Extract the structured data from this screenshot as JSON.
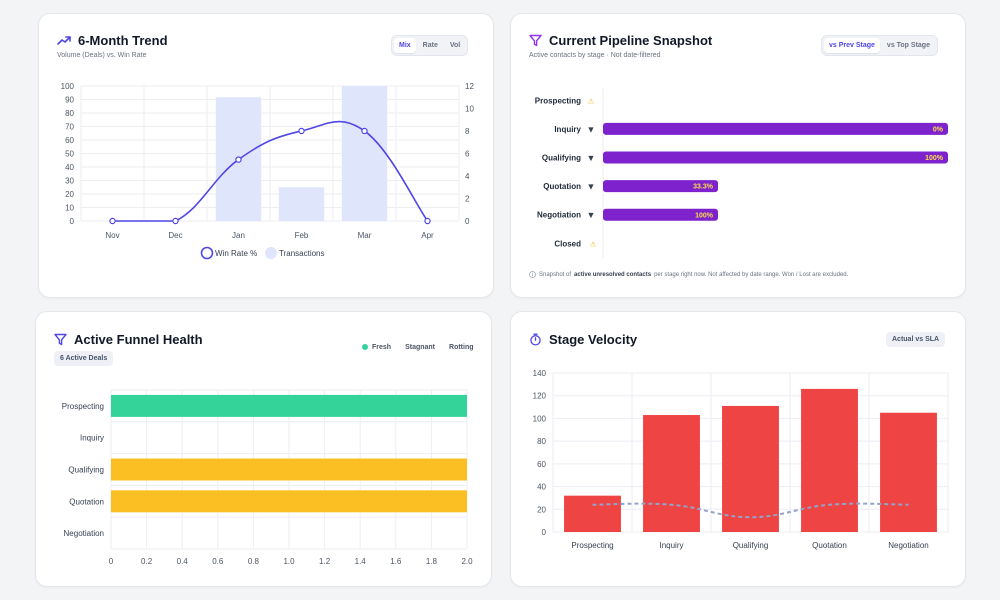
{
  "trend": {
    "title": "6-Month Trend",
    "subtitle": "Volume (Deals) vs. Win Rate",
    "toggle": [
      "Mix",
      "Rate",
      "Vol"
    ],
    "active_toggle": "Mix"
  },
  "pipeline": {
    "title": "Current Pipeline Snapshot",
    "subtitle": "Active contacts by stage · Not date-filtered",
    "toggle": [
      "vs Prev Stage",
      "vs Top Stage"
    ],
    "active_toggle": "vs Prev Stage",
    "note_prefix": "Snapshot of",
    "note_bold": "active unresolved contacts",
    "note_suffix": "per stage right now. Not affected by date range. Won / Lost are excluded."
  },
  "funnel": {
    "title": "Active Funnel Health",
    "badge": "6 Active Deals",
    "legend": [
      "Fresh",
      "Stagnant",
      "Rotting"
    ]
  },
  "velocity": {
    "title": "Stage Velocity",
    "badge": "Actual vs SLA"
  },
  "colors": {
    "accent": "#4f46e5",
    "purple": "#7e22ce",
    "fresh": "#34d399",
    "stagnant": "#fbbf24",
    "velocity_bar": "#ef4444",
    "sla_line": "#94a3c8",
    "transactions": "#dfe5fb",
    "win_rate": "#4f46e5"
  },
  "chart_data": [
    {
      "id": "trend",
      "type": "bar",
      "categories": [
        "Nov",
        "Dec",
        "Jan",
        "Feb",
        "Mar",
        "Apr"
      ],
      "series": [
        {
          "name": "Transactions",
          "type": "bar",
          "axis": "right",
          "values": [
            0,
            0,
            11,
            3,
            12,
            0
          ]
        },
        {
          "name": "Win Rate %",
          "type": "line",
          "axis": "left",
          "values": [
            0,
            0,
            45.5,
            66.7,
            66.7,
            0
          ]
        }
      ],
      "ylim": [
        0,
        100
      ],
      "y2lim": [
        0,
        12
      ],
      "yticks": [
        0,
        10,
        20,
        30,
        40,
        50,
        60,
        70,
        80,
        90,
        100
      ],
      "y2ticks": [
        0,
        2,
        4,
        6,
        8,
        10,
        12
      ],
      "legend": [
        "Win Rate %",
        "Transactions"
      ],
      "legend_position": "bottom",
      "grid": true
    },
    {
      "id": "pipeline",
      "type": "bar",
      "orientation": "horizontal",
      "categories": [
        "Prospecting",
        "Inquiry",
        "Qualifying",
        "Quotation",
        "Negotiation",
        "Closed"
      ],
      "values": [
        0,
        6,
        6,
        2,
        2,
        0
      ],
      "labels": [
        "",
        "0%",
        "100%",
        "33.3%",
        "100%",
        ""
      ],
      "grid": false
    },
    {
      "id": "funnel",
      "type": "bar",
      "orientation": "horizontal",
      "stacked": true,
      "categories": [
        "Prospecting",
        "Inquiry",
        "Qualifying",
        "Quotation",
        "Negotiation"
      ],
      "series": [
        {
          "name": "Fresh",
          "values": [
            2,
            0,
            0,
            0,
            0
          ]
        },
        {
          "name": "Stagnant",
          "values": [
            0,
            0,
            2,
            2,
            0
          ]
        },
        {
          "name": "Rotting",
          "values": [
            0,
            0,
            0,
            0,
            0
          ]
        }
      ],
      "xlim": [
        0,
        2.0
      ],
      "xticks": [
        "0",
        "0.2",
        "0.4",
        "0.6",
        "0.8",
        "1.0",
        "1.2",
        "1.4",
        "1.6",
        "1.8",
        "2.0"
      ],
      "grid": true
    },
    {
      "id": "velocity",
      "type": "bar",
      "categories": [
        "Prospecting",
        "Inquiry",
        "Qualifying",
        "Quotation",
        "Negotiation"
      ],
      "series": [
        {
          "name": "Actual",
          "type": "bar",
          "values": [
            32,
            103,
            111,
            126,
            105
          ]
        },
        {
          "name": "SLA",
          "type": "line",
          "values": [
            24,
            24,
            13,
            24,
            24
          ]
        }
      ],
      "ylim": [
        0,
        140
      ],
      "yticks": [
        0,
        20,
        40,
        60,
        80,
        100,
        120,
        140
      ],
      "grid": true
    }
  ]
}
